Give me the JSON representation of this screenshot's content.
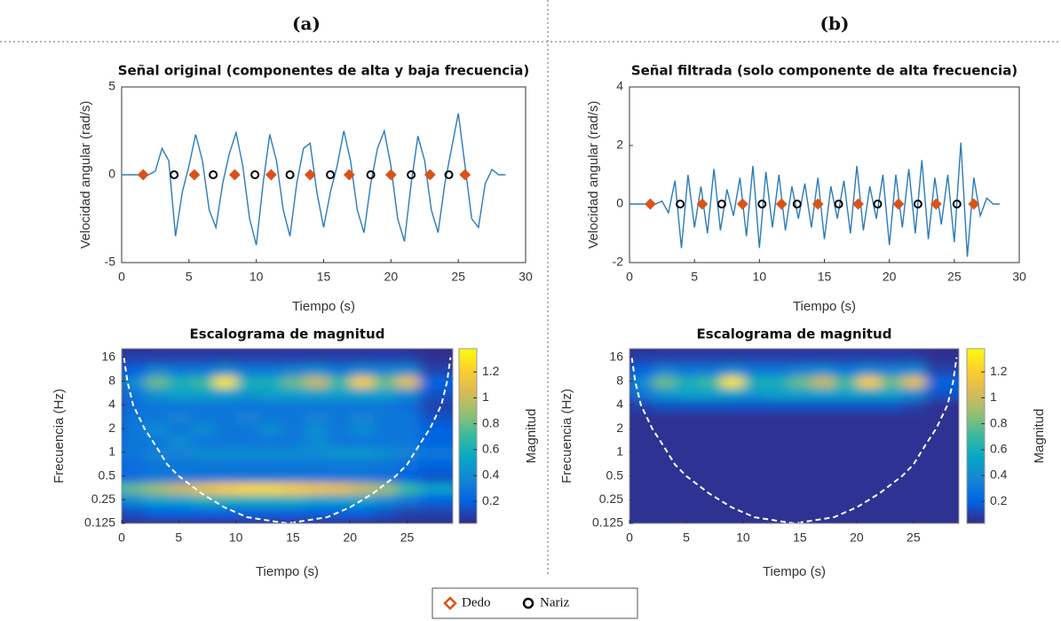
{
  "panels": [
    "(a)",
    "(b)"
  ],
  "chart_data": [
    {
      "type": "line",
      "title": "Señal original (componentes de alta y baja frecuencia)",
      "xlabel": "Tiempo (s)",
      "ylabel": "Velocidad angular (rad/s)",
      "xlim": [
        0,
        30
      ],
      "xticks": [
        0,
        5,
        10,
        15,
        20,
        25,
        30
      ],
      "ylim": [
        -5,
        5
      ],
      "yticks": [
        -5,
        0,
        5
      ],
      "x": [
        0,
        0.5,
        1,
        1.5,
        2,
        2.5,
        3,
        3.5,
        4,
        4.5,
        5,
        5.5,
        6,
        6.5,
        7,
        7.5,
        8,
        8.5,
        9,
        9.5,
        10,
        10.5,
        11,
        11.5,
        12,
        12.5,
        13,
        13.5,
        14,
        14.5,
        15,
        15.5,
        16,
        16.5,
        17,
        17.5,
        18,
        18.5,
        19,
        19.5,
        20,
        20.5,
        21,
        21.5,
        22,
        22.5,
        23,
        23.5,
        24,
        24.5,
        25,
        25.5,
        26,
        26.5,
        27,
        27.5,
        28,
        28.5
      ],
      "series": [
        {
          "color": "#2b7bba",
          "values": [
            0,
            0,
            0,
            0,
            0,
            0.2,
            1.5,
            0.8,
            -3.5,
            -1,
            0.5,
            2.3,
            0.8,
            -2,
            -3,
            -0.5,
            1.2,
            2.4,
            0.5,
            -2.5,
            -4,
            -0.5,
            2.3,
            0.8,
            -2,
            -3.5,
            -0.5,
            1.5,
            1.8,
            -1,
            -3,
            -1,
            0.5,
            2.5,
            0.8,
            -2,
            -3.3,
            -0.5,
            1.5,
            2.5,
            0.5,
            -2.5,
            -3.8,
            -0.5,
            2.2,
            0.8,
            -2,
            -3.3,
            -0.5,
            1.5,
            3.5,
            0.5,
            -2.5,
            -3,
            -0.5,
            0.3,
            0,
            0
          ]
        },
        {
          "name": "Dedo",
          "color": "#d95319",
          "marker": "diamond",
          "x": [
            1.6,
            5.4,
            8.4,
            11.1,
            14.0,
            16.9,
            20.0,
            22.9,
            25.5
          ],
          "values": [
            0,
            0,
            0,
            0,
            0,
            0,
            0,
            0,
            0
          ]
        },
        {
          "name": "Nariz",
          "color": "#000000",
          "marker": "circle",
          "x": [
            3.9,
            6.8,
            9.9,
            12.5,
            15.5,
            18.5,
            21.5,
            24.3
          ],
          "values": [
            0,
            0,
            0,
            0,
            0,
            0,
            0,
            0
          ]
        }
      ]
    },
    {
      "type": "line",
      "title": "Señal filtrada (solo componente de alta frecuencia)",
      "xlabel": "Tiempo (s)",
      "ylabel": "Velocidad angular (rad/s)",
      "xlim": [
        0,
        30
      ],
      "xticks": [
        0,
        5,
        10,
        15,
        20,
        25,
        30
      ],
      "ylim": [
        -2,
        4
      ],
      "yticks": [
        -2,
        0,
        2,
        4
      ],
      "x": [
        0,
        0.5,
        1,
        1.5,
        2,
        2.5,
        3,
        3.5,
        4,
        4.5,
        5,
        5.5,
        6,
        6.5,
        7,
        7.5,
        8,
        8.5,
        9,
        9.5,
        10,
        10.5,
        11,
        11.5,
        12,
        12.5,
        13,
        13.5,
        14,
        14.5,
        15,
        15.5,
        16,
        16.5,
        17,
        17.5,
        18,
        18.5,
        19,
        19.5,
        20,
        20.5,
        21,
        21.5,
        22,
        22.5,
        23,
        23.5,
        24,
        24.5,
        25,
        25.5,
        26,
        26.5,
        27,
        27.5,
        28,
        28.5
      ],
      "series": [
        {
          "color": "#2b7bba",
          "values": [
            0,
            0,
            0,
            0,
            0,
            0.1,
            -0.3,
            0.8,
            -1.5,
            1.0,
            -0.8,
            0.6,
            -1.0,
            1.2,
            -0.9,
            0.5,
            -0.4,
            0.9,
            -1.1,
            1.3,
            -1.5,
            1.1,
            -0.8,
            1.0,
            -0.9,
            0.6,
            -0.5,
            0.7,
            -0.8,
            0.9,
            -1.2,
            0.6,
            -0.5,
            0.8,
            -1.0,
            1.3,
            -0.9,
            0.6,
            -0.5,
            1.0,
            -1.4,
            1.0,
            -0.8,
            1.2,
            -1.0,
            1.5,
            -1.2,
            0.9,
            -0.7,
            1.0,
            -1.3,
            2.1,
            -1.8,
            0.9,
            -0.4,
            0.2,
            0,
            0
          ]
        },
        {
          "name": "Dedo",
          "color": "#d95319",
          "marker": "diamond",
          "x": [
            1.6,
            5.6,
            8.7,
            11.7,
            14.5,
            17.6,
            20.7,
            23.6,
            26.5
          ],
          "values": [
            0,
            0,
            0,
            0,
            0,
            0,
            0,
            0,
            0
          ]
        },
        {
          "name": "Nariz",
          "color": "#000000",
          "marker": "circle",
          "x": [
            3.9,
            7.1,
            10.2,
            12.9,
            16.1,
            19.1,
            22.2,
            25.2
          ],
          "values": [
            0,
            0,
            0,
            0,
            0,
            0,
            0,
            0
          ]
        }
      ]
    },
    {
      "type": "heatmap",
      "title": "Escalograma de magnitud",
      "xlabel": "Tiempo (s)",
      "ylabel": "Frecuencia (Hz)",
      "clabel": "Magnitud",
      "xlim": [
        0,
        29
      ],
      "xticks": [
        0,
        5,
        10,
        15,
        20,
        25
      ],
      "ylim": [
        0.125,
        20.7
      ],
      "yscale": "log",
      "yticks": [
        0.125,
        0.25,
        0.5,
        1,
        2,
        4,
        8,
        16
      ],
      "clim": [
        0.03,
        1.38
      ],
      "cticks": [
        0.2,
        0.4,
        0.6,
        0.8,
        1,
        1.2
      ],
      "colormap": [
        "#352a87",
        "#0363e1",
        "#1485d4",
        "#06a7c6",
        "#38b99e",
        "#92bf73",
        "#d9ba56",
        "#fcce2e",
        "#f9fb0e"
      ],
      "x": [
        0,
        2,
        4,
        6,
        8,
        10,
        12,
        14,
        16,
        18,
        20,
        22,
        24,
        26,
        28
      ],
      "y": [
        0.125,
        0.177,
        0.25,
        0.354,
        0.5,
        0.707,
        1,
        1.41,
        2,
        2.83,
        4,
        5.66,
        8,
        11.3,
        16
      ],
      "z": [
        [
          0.05,
          0.05,
          0.05,
          0.05,
          0.05,
          0.05,
          0.05,
          0.05,
          0.05,
          0.05,
          0.05,
          0.05,
          0.05,
          0.05,
          0.05
        ],
        [
          0.1,
          0.15,
          0.2,
          0.2,
          0.2,
          0.2,
          0.2,
          0.2,
          0.2,
          0.2,
          0.2,
          0.2,
          0.15,
          0.1,
          0.1
        ],
        [
          0.3,
          0.4,
          0.5,
          0.5,
          0.6,
          0.6,
          0.6,
          0.6,
          0.6,
          0.5,
          0.5,
          0.5,
          0.4,
          0.3,
          0.2
        ],
        [
          0.6,
          0.8,
          0.9,
          1.0,
          1.1,
          1.2,
          1.25,
          1.25,
          1.2,
          1.15,
          1.1,
          1.0,
          0.9,
          0.7,
          0.5
        ],
        [
          0.2,
          0.25,
          0.3,
          0.3,
          0.3,
          0.3,
          0.3,
          0.3,
          0.3,
          0.3,
          0.3,
          0.3,
          0.25,
          0.2,
          0.15
        ],
        [
          0.2,
          0.25,
          0.3,
          0.3,
          0.3,
          0.3,
          0.3,
          0.3,
          0.3,
          0.3,
          0.3,
          0.3,
          0.3,
          0.25,
          0.2
        ],
        [
          0.25,
          0.3,
          0.35,
          0.35,
          0.4,
          0.4,
          0.4,
          0.4,
          0.4,
          0.4,
          0.45,
          0.45,
          0.4,
          0.35,
          0.3
        ],
        [
          0.2,
          0.3,
          0.3,
          0.4,
          0.3,
          0.3,
          0.3,
          0.3,
          0.3,
          0.4,
          0.3,
          0.3,
          0.3,
          0.3,
          0.2
        ],
        [
          0.15,
          0.3,
          0.4,
          0.3,
          0.4,
          0.3,
          0.3,
          0.4,
          0.3,
          0.4,
          0.3,
          0.4,
          0.3,
          0.3,
          0.2
        ],
        [
          0.15,
          0.3,
          0.3,
          0.35,
          0.3,
          0.3,
          0.35,
          0.3,
          0.3,
          0.35,
          0.3,
          0.35,
          0.3,
          0.3,
          0.15
        ],
        [
          0.1,
          0.25,
          0.3,
          0.3,
          0.3,
          0.3,
          0.3,
          0.3,
          0.3,
          0.3,
          0.3,
          0.3,
          0.3,
          0.25,
          0.1
        ],
        [
          0.1,
          0.3,
          0.45,
          0.5,
          0.5,
          0.5,
          0.45,
          0.5,
          0.5,
          0.5,
          0.5,
          0.5,
          0.5,
          0.4,
          0.15
        ],
        [
          0.1,
          0.4,
          0.8,
          0.6,
          0.7,
          1.3,
          0.6,
          0.6,
          0.8,
          1.0,
          0.7,
          1.2,
          0.8,
          1.1,
          0.2
        ],
        [
          0.1,
          0.2,
          0.35,
          0.3,
          0.3,
          0.4,
          0.3,
          0.3,
          0.35,
          0.4,
          0.3,
          0.4,
          0.35,
          0.4,
          0.1
        ],
        [
          0.05,
          0.1,
          0.1,
          0.1,
          0.1,
          0.1,
          0.1,
          0.1,
          0.1,
          0.1,
          0.1,
          0.1,
          0.1,
          0.1,
          0.05
        ]
      ],
      "coi": {
        "x": [
          0.2,
          0.5,
          1,
          2,
          3,
          4,
          5,
          7,
          9,
          11,
          14.5,
          18,
          20,
          22,
          24,
          25,
          26,
          27,
          28,
          28.5,
          28.8
        ],
        "values": [
          16,
          8,
          4,
          2,
          1.2,
          0.7,
          0.5,
          0.3,
          0.2,
          0.15,
          0.125,
          0.15,
          0.2,
          0.3,
          0.5,
          0.7,
          1.2,
          2,
          4,
          8,
          16
        ]
      }
    },
    {
      "type": "heatmap",
      "title": "Escalograma de magnitud",
      "xlabel": "Tiempo (s)",
      "ylabel": "Frecuencia (Hz)",
      "clabel": "Magnitud",
      "xlim": [
        0,
        29
      ],
      "xticks": [
        0,
        5,
        10,
        15,
        20,
        25
      ],
      "ylim": [
        0.125,
        20.7
      ],
      "yscale": "log",
      "yticks": [
        0.125,
        0.25,
        0.5,
        1,
        2,
        4,
        8,
        16
      ],
      "clim": [
        0.03,
        1.38
      ],
      "cticks": [
        0.2,
        0.4,
        0.6,
        0.8,
        1,
        1.2
      ],
      "colormap": [
        "#352a87",
        "#0363e1",
        "#1485d4",
        "#06a7c6",
        "#38b99e",
        "#92bf73",
        "#d9ba56",
        "#fcce2e",
        "#f9fb0e"
      ],
      "x": [
        0,
        2,
        4,
        6,
        8,
        10,
        12,
        14,
        16,
        18,
        20,
        22,
        24,
        26,
        28
      ],
      "y": [
        0.125,
        0.177,
        0.25,
        0.354,
        0.5,
        0.707,
        1,
        1.41,
        2,
        2.83,
        4,
        5.66,
        8,
        11.3,
        16
      ],
      "z": [
        [
          0.05,
          0.05,
          0.05,
          0.05,
          0.05,
          0.05,
          0.05,
          0.05,
          0.05,
          0.05,
          0.05,
          0.05,
          0.05,
          0.05,
          0.05
        ],
        [
          0.05,
          0.05,
          0.05,
          0.05,
          0.05,
          0.05,
          0.05,
          0.05,
          0.05,
          0.05,
          0.05,
          0.05,
          0.05,
          0.05,
          0.05
        ],
        [
          0.05,
          0.05,
          0.05,
          0.05,
          0.05,
          0.05,
          0.05,
          0.05,
          0.05,
          0.05,
          0.05,
          0.05,
          0.05,
          0.05,
          0.05
        ],
        [
          0.05,
          0.05,
          0.05,
          0.05,
          0.05,
          0.05,
          0.05,
          0.05,
          0.05,
          0.05,
          0.05,
          0.05,
          0.05,
          0.05,
          0.05
        ],
        [
          0.05,
          0.05,
          0.05,
          0.05,
          0.05,
          0.05,
          0.05,
          0.05,
          0.05,
          0.05,
          0.05,
          0.05,
          0.05,
          0.05,
          0.05
        ],
        [
          0.05,
          0.05,
          0.05,
          0.05,
          0.05,
          0.05,
          0.05,
          0.05,
          0.05,
          0.05,
          0.05,
          0.05,
          0.05,
          0.05,
          0.05
        ],
        [
          0.05,
          0.05,
          0.05,
          0.05,
          0.05,
          0.05,
          0.05,
          0.05,
          0.05,
          0.05,
          0.05,
          0.05,
          0.05,
          0.05,
          0.05
        ],
        [
          0.05,
          0.05,
          0.05,
          0.05,
          0.05,
          0.05,
          0.05,
          0.05,
          0.05,
          0.05,
          0.05,
          0.05,
          0.05,
          0.05,
          0.05
        ],
        [
          0.05,
          0.05,
          0.05,
          0.05,
          0.05,
          0.05,
          0.05,
          0.05,
          0.05,
          0.05,
          0.05,
          0.05,
          0.05,
          0.05,
          0.05
        ],
        [
          0.05,
          0.05,
          0.05,
          0.05,
          0.05,
          0.05,
          0.05,
          0.05,
          0.05,
          0.05,
          0.05,
          0.05,
          0.05,
          0.05,
          0.05
        ],
        [
          0.05,
          0.1,
          0.15,
          0.15,
          0.15,
          0.15,
          0.15,
          0.15,
          0.15,
          0.15,
          0.15,
          0.15,
          0.15,
          0.1,
          0.05
        ],
        [
          0.1,
          0.3,
          0.45,
          0.5,
          0.5,
          0.5,
          0.45,
          0.5,
          0.5,
          0.5,
          0.5,
          0.5,
          0.5,
          0.4,
          0.15
        ],
        [
          0.1,
          0.4,
          0.8,
          0.6,
          0.7,
          1.3,
          0.6,
          0.6,
          0.8,
          1.0,
          0.7,
          1.2,
          0.8,
          1.1,
          0.2
        ],
        [
          0.1,
          0.2,
          0.35,
          0.3,
          0.3,
          0.4,
          0.3,
          0.3,
          0.35,
          0.4,
          0.3,
          0.4,
          0.35,
          0.4,
          0.1
        ],
        [
          0.05,
          0.1,
          0.1,
          0.1,
          0.1,
          0.1,
          0.1,
          0.1,
          0.1,
          0.1,
          0.1,
          0.1,
          0.1,
          0.1,
          0.05
        ]
      ],
      "coi": {
        "x": [
          0.2,
          0.5,
          1,
          2,
          3,
          4,
          5,
          7,
          9,
          11,
          14.5,
          18,
          20,
          22,
          24,
          25,
          26,
          27,
          28,
          28.5,
          28.8
        ],
        "values": [
          16,
          8,
          4,
          2,
          1.2,
          0.7,
          0.5,
          0.3,
          0.2,
          0.15,
          0.125,
          0.15,
          0.2,
          0.3,
          0.5,
          0.7,
          1.2,
          2,
          4,
          8,
          16
        ]
      }
    }
  ]
}
